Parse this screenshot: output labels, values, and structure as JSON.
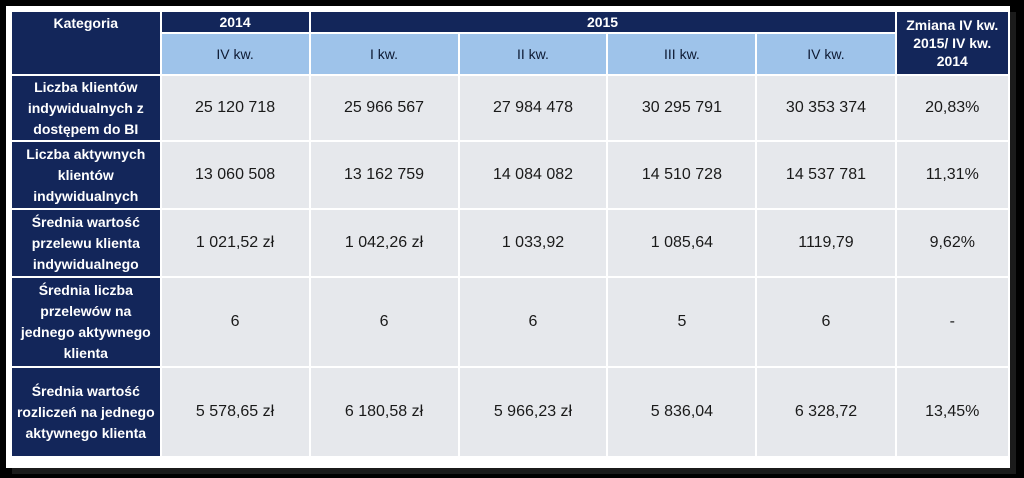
{
  "header": {
    "category": "Kategoria",
    "year_2014": "2014",
    "year_2015": "2015",
    "change": "Zmiana IV kw. 2015/ IV kw. 2014",
    "quarters": [
      "IV kw.",
      "I kw.",
      "II kw.",
      "III kw.",
      "IV kw."
    ]
  },
  "rows": [
    {
      "label": "Liczba klientów indywidualnych z dostępem do BI",
      "values": [
        "25 120 718",
        "25 966 567",
        "27 984 478",
        "30 295 791",
        "30 353 374",
        "20,83%"
      ]
    },
    {
      "label": "Liczba aktywnych klientów indywidualnych",
      "values": [
        "13 060 508",
        "13 162 759",
        "14 084 082",
        "14 510 728",
        "14 537 781",
        "11,31%"
      ]
    },
    {
      "label": "Średnia wartość przelewu klienta indywidualnego",
      "values": [
        "1 021,52 zł",
        "1 042,26 zł",
        "1 033,92",
        "1 085,64",
        "1119,79",
        "9,62%"
      ]
    },
    {
      "label": "Średnia liczba przelewów na jednego aktywnego klienta",
      "values": [
        "6",
        "6",
        "6",
        "5",
        "6",
        "-"
      ]
    },
    {
      "label": "Średnia wartość rozliczeń na jednego aktywnego klienta",
      "values": [
        "5 578,65 zł",
        "6 180,58 zł",
        "5 966,23 zł",
        "5 836,04",
        "6 328,72",
        "13,45%"
      ]
    }
  ]
}
